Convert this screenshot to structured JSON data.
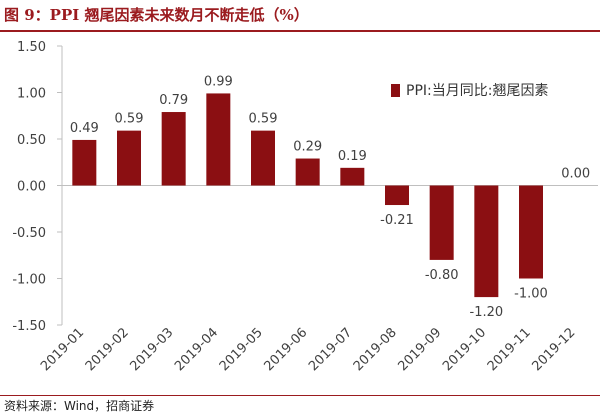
{
  "title": "图 9：PPI 翘尾因素未来数月不断走低（%）",
  "source": "资料来源：Wind，招商证券",
  "colors": {
    "bar": "#8b0f12",
    "title": "#9b1b1f",
    "axis": "#bfbfbf",
    "text": "#404040"
  },
  "chart_data": {
    "type": "bar",
    "categories": [
      "2019-01",
      "2019-02",
      "2019-03",
      "2019-04",
      "2019-05",
      "2019-06",
      "2019-07",
      "2019-08",
      "2019-09",
      "2019-10",
      "2019-11",
      "2019-12"
    ],
    "series": [
      {
        "name": "PPI:当月同比:翘尾因素",
        "values": [
          0.49,
          0.59,
          0.79,
          0.99,
          0.59,
          0.29,
          0.19,
          -0.21,
          -0.8,
          -1.2,
          -1.0,
          0.0
        ]
      }
    ],
    "data_labels": [
      "0.49",
      "0.59",
      "0.79",
      "0.99",
      "0.59",
      "0.29",
      "0.19",
      "-0.21",
      "-0.80",
      "-1.20",
      "-1.00",
      "0.00"
    ],
    "ylim": [
      -1.5,
      1.5
    ],
    "yticks": [
      1.5,
      1.0,
      0.5,
      0.0,
      -0.5,
      -1.0,
      -1.5
    ],
    "ytick_labels": [
      "1.50",
      "1.00",
      "0.50",
      "0.00",
      "-0.50",
      "-1.00",
      "-1.50"
    ],
    "xlabel": "",
    "ylabel": "",
    "grid": false,
    "legend_position": "top-right"
  }
}
